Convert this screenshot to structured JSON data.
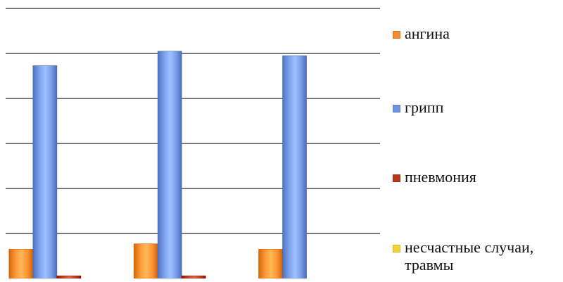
{
  "chart_data": {
    "type": "bar",
    "categories": [
      "",
      "",
      ""
    ],
    "series": [
      {
        "name": "ангина",
        "values": [
          0.65,
          0.77,
          0.65
        ],
        "color": "#F58A2A"
      },
      {
        "name": "грипп",
        "values": [
          4.73,
          5.05,
          4.95
        ],
        "color": "#7093E0"
      },
      {
        "name": "пневмония",
        "values": [
          0.06,
          0.06,
          0.0
        ],
        "color": "#B33A17"
      },
      {
        "name": "несчастные случаи,\nтравмы",
        "values": [
          0,
          0,
          0
        ],
        "color": "#F2D13A"
      }
    ],
    "ylim": [
      0,
      6
    ],
    "grid": true,
    "legend_position": "right"
  },
  "legend": {
    "items": [
      {
        "label": "ангина",
        "color": "#F58A2A"
      },
      {
        "label": "грипп",
        "color": "#7093E0"
      },
      {
        "label": "пневмония",
        "color": "#B33A17"
      },
      {
        "label": "несчастные случаи,\nтравмы",
        "color": "#F2D13A"
      }
    ]
  }
}
